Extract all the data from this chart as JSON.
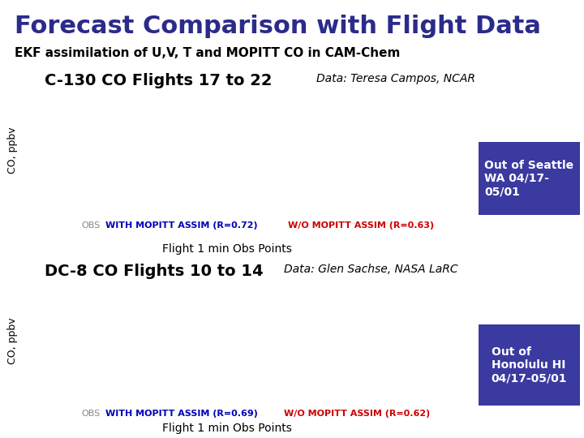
{
  "title": "Forecast Comparison with Flight Data",
  "subtitle": "EKF assimilation of U,V, T and MOPITT CO in CAM-Chem",
  "title_color": "#2B2B8B",
  "subtitle_color": "#000000",
  "section1_heading": "C-130 CO Flights 17 to 22",
  "section1_data_credit": "Data: Teresa Campos, NCAR",
  "section1_ylabel": "CO, ppbv",
  "section1_legend_obs": "OBS",
  "section1_legend_with": "WITH MOPITT ASSIM (R=0.72)",
  "section1_legend_without": "W/O MOPITT ASSIM (R=0.63)",
  "section1_footer": "Flight 1 min Obs Points",
  "section1_box_text": "Out of Seattle\nWA 04/17-\n05/01",
  "section2_heading": "DC-8 CO Flights 10 to 14",
  "section2_data_credit": "Data: Glen Sachse, NASA LaRC",
  "section2_ylabel": "CO, ppbv",
  "section2_legend_obs": "OBS",
  "section2_legend_with": "WITH MOPITT ASSIM (R=0.69)",
  "section2_legend_without": "W/O MOPITT ASSIM (R=0.62)",
  "section2_footer": "Flight 1 min Obs Points",
  "section2_box_text": "Out of\nHonolulu HI\n04/17-05/01",
  "box_bg_color": "#3A3AA0",
  "box_text_color": "#FFFFFF",
  "color_obs": "#888888",
  "color_with": "#0000BB",
  "color_without": "#CC0000",
  "background_color": "#FFFFFF",
  "title_fontsize": 22,
  "subtitle_fontsize": 11,
  "heading_fontsize": 14,
  "credit_fontsize": 10,
  "legend_fontsize": 8,
  "footer_fontsize": 10,
  "ylabel_fontsize": 9
}
